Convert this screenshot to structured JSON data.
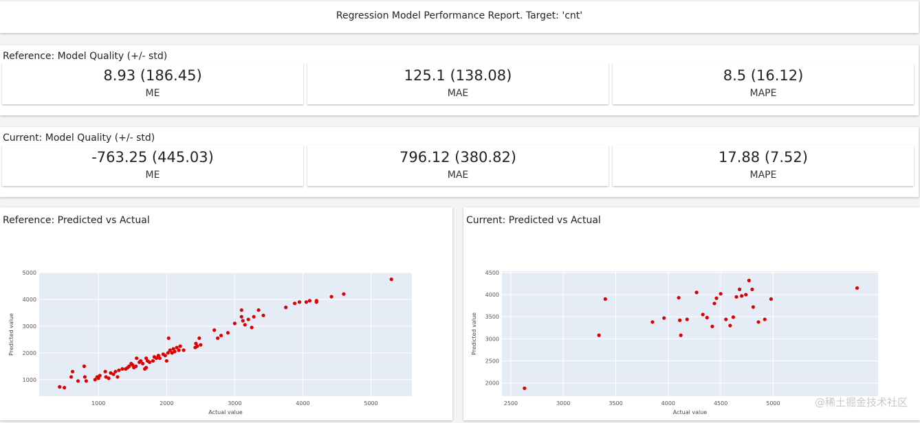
{
  "header": {
    "title": "Regression Model Performance Report. Target: 'cnt'"
  },
  "panels": [
    {
      "title": "Reference: Model Quality (+/- std)",
      "metrics": [
        {
          "value": "8.93 (186.45)",
          "label": "ME"
        },
        {
          "value": "125.1 (138.08)",
          "label": "MAE"
        },
        {
          "value": "8.5 (16.12)",
          "label": "MAPE"
        }
      ]
    },
    {
      "title": "Current: Model Quality (+/- std)",
      "metrics": [
        {
          "value": "-763.25 (445.03)",
          "label": "ME"
        },
        {
          "value": "796.12 (380.82)",
          "label": "MAE"
        },
        {
          "value": "17.88 (7.52)",
          "label": "MAPE"
        }
      ]
    }
  ],
  "chart_data": [
    {
      "type": "scatter",
      "title": "Reference: Predicted vs Actual",
      "x_label": "Actual value",
      "y_label": "Predicted value",
      "color": "#dd0000",
      "grid": true,
      "xlim": [
        130,
        5600
      ],
      "ylim": [
        380,
        5000
      ],
      "xticks": [
        1000,
        2000,
        3000,
        4000,
        5000
      ],
      "yticks": [
        1000,
        2000,
        3000,
        4000,
        5000
      ],
      "x": [
        430,
        500,
        600,
        620,
        700,
        790,
        800,
        820,
        950,
        980,
        1000,
        1020,
        1100,
        1110,
        1150,
        1180,
        1220,
        1250,
        1280,
        1300,
        1350,
        1400,
        1430,
        1450,
        1480,
        1500,
        1520,
        1550,
        1560,
        1600,
        1620,
        1650,
        1680,
        1700,
        1700,
        1720,
        1750,
        1800,
        1820,
        1850,
        1880,
        1900,
        1950,
        1980,
        2000,
        2020,
        2030,
        2050,
        2080,
        2100,
        2120,
        2150,
        2180,
        2200,
        2250,
        2420,
        2430,
        2450,
        2480,
        2500,
        2700,
        2750,
        2800,
        2900,
        3000,
        3100,
        3100,
        3120,
        3150,
        3200,
        3250,
        3280,
        3350,
        3420,
        3750,
        3880,
        3950,
        4050,
        4100,
        4200,
        4200,
        4420,
        4600,
        5300
      ],
      "values": [
        730,
        700,
        1100,
        1300,
        950,
        1500,
        1100,
        950,
        1000,
        1100,
        1050,
        1150,
        1300,
        1100,
        1050,
        1250,
        1200,
        1300,
        1100,
        1350,
        1400,
        1400,
        1450,
        1500,
        1600,
        1550,
        1450,
        1500,
        1800,
        1650,
        1700,
        1600,
        1400,
        1450,
        1800,
        1700,
        1650,
        1700,
        1850,
        1800,
        1900,
        1800,
        1950,
        1900,
        1700,
        2000,
        2550,
        2100,
        2000,
        2150,
        2050,
        2200,
        2100,
        2250,
        2100,
        2200,
        2350,
        2250,
        2550,
        2300,
        2850,
        2550,
        2650,
        2750,
        3100,
        3600,
        3350,
        3200,
        3050,
        3250,
        2950,
        3350,
        3600,
        3400,
        3700,
        3850,
        3900,
        3900,
        3950,
        3900,
        3950,
        4100,
        4200,
        4750
      ]
    },
    {
      "type": "scatter",
      "title": "Current: Predicted vs Actual",
      "x_label": "Actual value",
      "y_label": "Predicted value",
      "color": "#dd0000",
      "grid": true,
      "xlim": [
        2415,
        6000
      ],
      "ylim": [
        1700,
        4530
      ],
      "xticks": [
        2500,
        3000,
        3500,
        4000,
        4500,
        5000
      ],
      "yticks": [
        2000,
        2500,
        3000,
        3500,
        4000,
        4500
      ],
      "x": [
        2630,
        3340,
        3400,
        3850,
        3960,
        4100,
        4110,
        4120,
        4180,
        4270,
        4330,
        4370,
        4420,
        4440,
        4460,
        4500,
        4550,
        4590,
        4620,
        4650,
        4680,
        4700,
        4740,
        4770,
        4800,
        4810,
        4860,
        4920,
        4980,
        5800
      ],
      "values": [
        1880,
        3080,
        3900,
        3380,
        3470,
        3930,
        3420,
        3080,
        3440,
        4050,
        3550,
        3480,
        3280,
        3800,
        3920,
        4020,
        3440,
        3300,
        3490,
        3950,
        4120,
        3970,
        4000,
        4320,
        4120,
        3720,
        3380,
        3440,
        3900,
        4150
      ]
    }
  ],
  "watermark": "@稀土掘金技术社区"
}
